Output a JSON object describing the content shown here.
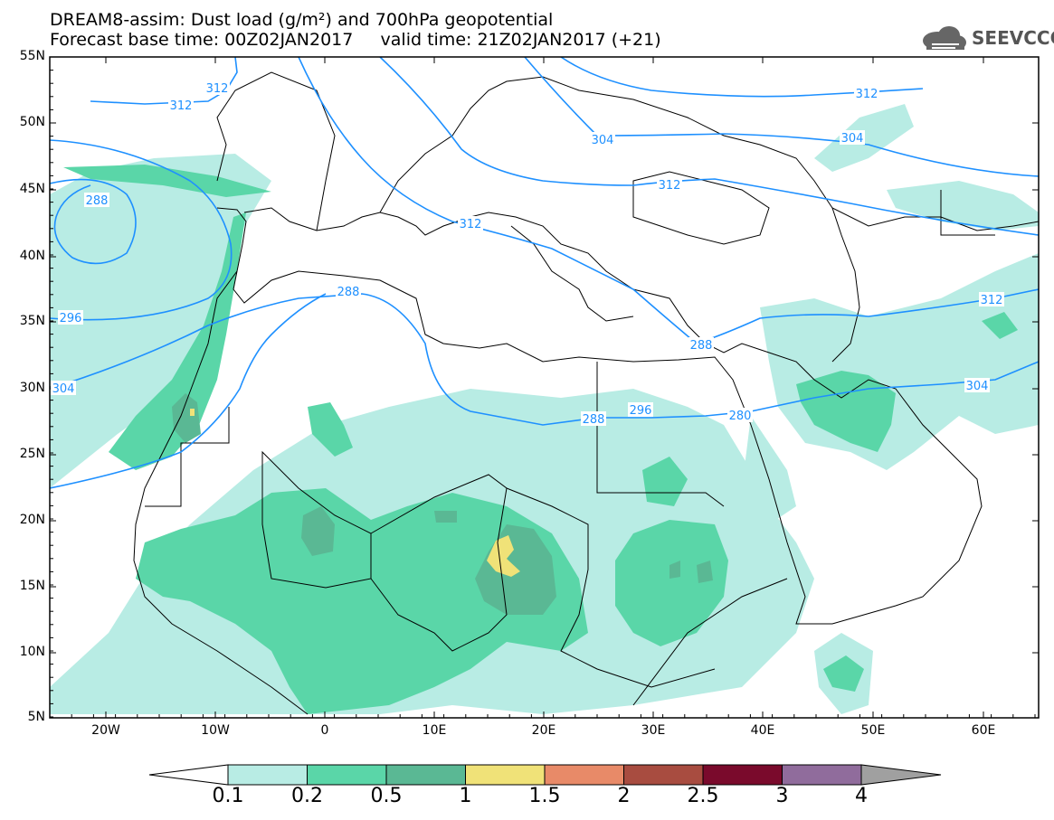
{
  "title": {
    "line1": "DREAM8-assim: Dust load (g/m²) and 700hPa geopotential",
    "line2": "Forecast base time: 00Z02JAN2017     valid time: 21Z02JAN2017 (+21)"
  },
  "logo": {
    "icon": "cloud-logo-icon",
    "text": "SEEVCCC"
  },
  "map": {
    "lat_labels": [
      "55N",
      "50N",
      "45N",
      "40N",
      "35N",
      "30N",
      "25N",
      "20N",
      "15N",
      "10N",
      "5N"
    ],
    "lon_labels": [
      "20W",
      "10W",
      "0",
      "10E",
      "20E",
      "30E",
      "40E",
      "50E",
      "60E"
    ],
    "contour_labels": [
      "312",
      "288",
      "296",
      "304",
      "288",
      "312",
      "304",
      "304",
      "312",
      "312",
      "312",
      "288",
      "288",
      "296",
      "280",
      "304",
      "312"
    ],
    "contour_color": "#1e90ff",
    "coast_color": "#000000"
  },
  "colorbar": {
    "labels": [
      "0.1",
      "0.2",
      "0.5",
      "1",
      "1.5",
      "2",
      "2.5",
      "3",
      "4"
    ],
    "colors": [
      "#b8ece4",
      "#5ad6a8",
      "#5ab894",
      "#f0e278",
      "#e88a68",
      "#a84c40",
      "#7a0a2c",
      "#906c9c"
    ],
    "under_color": "#ffffff",
    "over_color": "#a0a0a0"
  }
}
